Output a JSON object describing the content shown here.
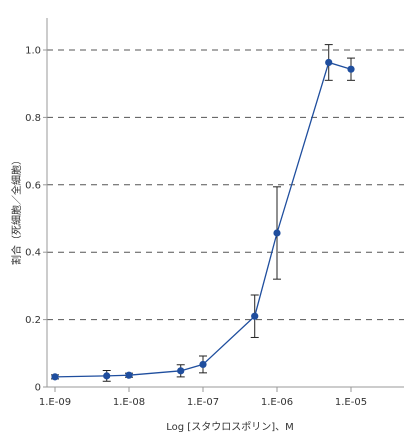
{
  "chart_data": {
    "type": "line",
    "title": "",
    "xlabel": "Log [スタウロスポリン]、M",
    "ylabel": "割合（死細胞／全細胞）",
    "x_scale": "log",
    "xlim": [
      1e-09,
      1e-05
    ],
    "ylim": [
      0,
      1.0
    ],
    "x_ticks": [
      1e-09,
      1e-08,
      1e-07,
      1e-06,
      1e-05
    ],
    "x_tick_labels": [
      "1.E-09",
      "1.E-08",
      "1.E-07",
      "1.E-06",
      "1.E-05"
    ],
    "y_ticks": [
      0,
      0.2,
      0.4,
      0.6,
      0.8,
      1.0
    ],
    "y_tick_labels": [
      "0",
      "0.2",
      "0.4",
      "0.6",
      "0.8",
      "1.0"
    ],
    "grid": "horizontal dashed",
    "series": [
      {
        "color": "#1f4e9e",
        "x": [
          1e-09,
          5e-09,
          1e-08,
          5e-08,
          1e-07,
          5e-07,
          1e-06,
          5e-06,
          1e-05
        ],
        "y": [
          0.03,
          0.033,
          0.035,
          0.048,
          0.067,
          0.21,
          0.457,
          0.963,
          0.943
        ],
        "error": [
          0.006,
          0.016,
          0.006,
          0.018,
          0.025,
          0.063,
          0.137,
          0.053,
          0.033
        ]
      }
    ]
  }
}
